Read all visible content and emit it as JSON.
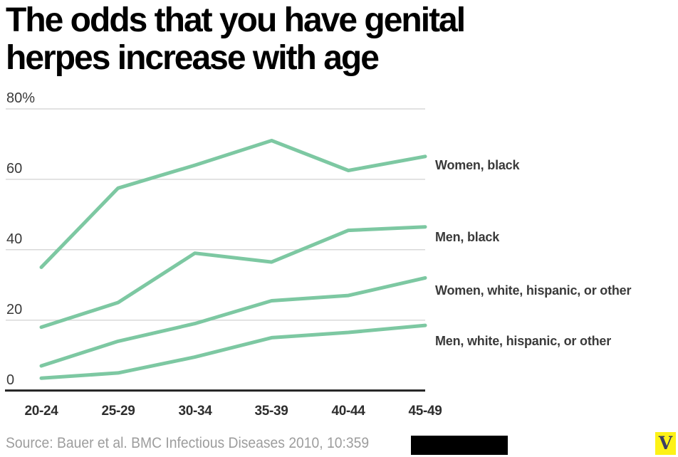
{
  "header": {
    "title_lines": [
      "The odds that you have genital",
      "herpes increase with age"
    ]
  },
  "chart_data": {
    "type": "line",
    "title": "The odds that you have genital herpes increase with age",
    "categories": [
      "20-24",
      "25-29",
      "30-34",
      "35-39",
      "40-44",
      "45-49"
    ],
    "series": [
      {
        "name": "Women, black",
        "values": [
          35,
          57.5,
          64,
          71,
          62.5,
          66.5
        ]
      },
      {
        "name": "Men, black",
        "values": [
          18,
          25,
          39,
          36.5,
          45.5,
          46.5
        ]
      },
      {
        "name": "Women, white, hispanic, or other",
        "values": [
          7,
          14,
          19,
          25.5,
          27,
          32
        ]
      },
      {
        "name": "Men, white, hispanic, or other",
        "values": [
          3.5,
          5,
          9.5,
          15,
          16.5,
          18.5
        ]
      }
    ],
    "xlabel": "",
    "ylabel": "",
    "y_ticks": [
      "80%",
      "60",
      "40",
      "20",
      "0"
    ],
    "y_tick_values": [
      80,
      60,
      40,
      20,
      0
    ],
    "ylim": [
      0,
      80
    ],
    "grid": true,
    "legend_position": "right",
    "line_color": "#7dc8a2",
    "grid_color": "#d9d9d9",
    "axis_color": "#232323"
  },
  "footer": {
    "source": "Source: Bauer et al. BMC Infectious Diseases 2010, 10:359",
    "logo_letter": "V",
    "logo_color": "#fdf216"
  }
}
